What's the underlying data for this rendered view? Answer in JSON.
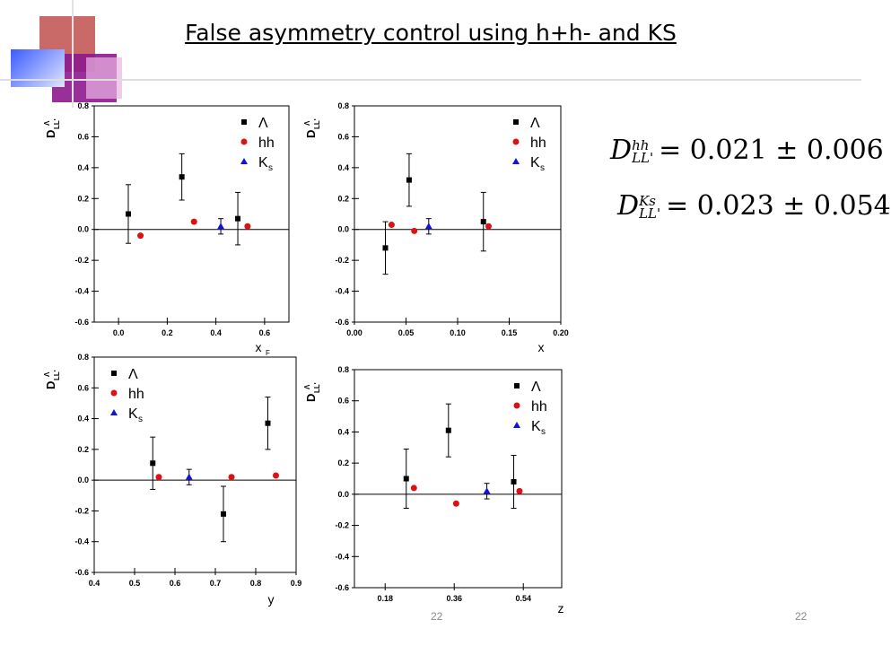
{
  "title": "False asymmetry control  using  h+h- and KS",
  "page_numbers": [
    "22",
    "22"
  ],
  "equations": [
    {
      "symbol": "D",
      "superscript": "hh",
      "subscript": "LL'",
      "text": "= 0.021 ± 0.006"
    },
    {
      "symbol": "D",
      "superscript": "Ks",
      "subscript": "LL'",
      "text": "= 0.023 ± 0.054"
    }
  ],
  "colors": {
    "lambda": "#000000",
    "hh": "#dd1111",
    "ks": "#1111dd",
    "deco_red": "#c0504d",
    "deco_purple": "#8e1a8e",
    "deco_blue": "#4f6dff"
  },
  "chart_data": [
    {
      "type": "scatter",
      "ylabel": "D",
      "ylabel_sup": "Λ",
      "ylabel_sub": "LL'",
      "xlabel": "x",
      "xlabel_sub": "F",
      "xlim": [
        -0.1,
        0.7
      ],
      "ylim": [
        -0.6,
        0.8
      ],
      "xticks": [
        "0.0",
        "0.2",
        "0.4",
        "0.6"
      ],
      "xtick_values": [
        0.0,
        0.2,
        0.4,
        0.6
      ],
      "yticks": [
        "-0.6",
        "-0.4",
        "-0.2",
        "0.0",
        "0.2",
        "0.4",
        "0.6",
        "0.8"
      ],
      "ytick_values": [
        -0.6,
        -0.4,
        -0.2,
        0.0,
        0.2,
        0.4,
        0.6,
        0.8
      ],
      "legend": [
        "Λ",
        "hh",
        "K",
        "s"
      ],
      "legend_position": "top-right",
      "series": [
        {
          "name": "Λ",
          "marker": "square",
          "x": [
            0.04,
            0.26,
            0.49
          ],
          "y": [
            0.1,
            0.34,
            0.07
          ],
          "err": [
            0.19,
            0.15,
            0.17
          ]
        },
        {
          "name": "hh",
          "marker": "circle",
          "x": [
            0.09,
            0.31,
            0.53
          ],
          "y": [
            -0.04,
            0.05,
            0.02
          ],
          "err": [
            0,
            0,
            0
          ]
        },
        {
          "name": "Ks",
          "marker": "triangle",
          "x": [
            0.42
          ],
          "y": [
            0.02
          ],
          "err": [
            0.05
          ]
        }
      ]
    },
    {
      "type": "scatter",
      "ylabel": "D",
      "ylabel_sup": "Λ",
      "ylabel_sub": "LL'",
      "xlabel": "x",
      "xlabel_sub": "",
      "xlim": [
        0.0,
        0.2
      ],
      "ylim": [
        -0.6,
        0.8
      ],
      "xticks": [
        "0.00",
        "0.05",
        "0.10",
        "0.15",
        "0.20"
      ],
      "xtick_values": [
        0.0,
        0.05,
        0.1,
        0.15,
        0.2
      ],
      "yticks": [
        "-0.6",
        "-0.4",
        "-0.2",
        "0.0",
        "0.2",
        "0.4",
        "0.6",
        "0.8"
      ],
      "ytick_values": [
        -0.6,
        -0.4,
        -0.2,
        0.0,
        0.2,
        0.4,
        0.6,
        0.8
      ],
      "legend": [
        "Λ",
        "hh",
        "K",
        "s"
      ],
      "legend_position": "top-right",
      "series": [
        {
          "name": "Λ",
          "marker": "square",
          "x": [
            0.03,
            0.053,
            0.125
          ],
          "y": [
            -0.12,
            0.32,
            0.05
          ],
          "err": [
            0.17,
            0.17,
            0.19
          ]
        },
        {
          "name": "hh",
          "marker": "circle",
          "x": [
            0.036,
            0.058,
            0.13
          ],
          "y": [
            0.03,
            -0.01,
            0.02
          ],
          "err": [
            0,
            0,
            0
          ]
        },
        {
          "name": "Ks",
          "marker": "triangle",
          "x": [
            0.072
          ],
          "y": [
            0.02
          ],
          "err": [
            0.05
          ]
        }
      ]
    },
    {
      "type": "scatter",
      "ylabel": "D",
      "ylabel_sup": "Λ",
      "ylabel_sub": "LL'",
      "xlabel": "y",
      "xlabel_sub": "",
      "xlim": [
        0.4,
        0.9
      ],
      "ylim": [
        -0.6,
        0.8
      ],
      "xticks": [
        "0.4",
        "0.5",
        "0.6",
        "0.7",
        "0.8",
        "0.9"
      ],
      "xtick_values": [
        0.4,
        0.5,
        0.6,
        0.7,
        0.8,
        0.9
      ],
      "yticks": [
        "-0.6",
        "-0.4",
        "-0.2",
        "0.0",
        "0.2",
        "0.4",
        "0.6",
        "0.8"
      ],
      "ytick_values": [
        -0.6,
        -0.4,
        -0.2,
        0.0,
        0.2,
        0.4,
        0.6,
        0.8
      ],
      "legend": [
        "Λ",
        "hh",
        "K",
        "s"
      ],
      "legend_position": "top-left",
      "series": [
        {
          "name": "Λ",
          "marker": "square",
          "x": [
            0.545,
            0.72,
            0.83
          ],
          "y": [
            0.11,
            -0.22,
            0.37
          ],
          "err": [
            0.17,
            0.18,
            0.17
          ]
        },
        {
          "name": "hh",
          "marker": "circle",
          "x": [
            0.56,
            0.74,
            0.85
          ],
          "y": [
            0.02,
            0.02,
            0.03
          ],
          "err": [
            0,
            0,
            0
          ]
        },
        {
          "name": "Ks",
          "marker": "triangle",
          "x": [
            0.635
          ],
          "y": [
            0.02
          ],
          "err": [
            0.05
          ]
        }
      ]
    },
    {
      "type": "scatter",
      "ylabel": "D",
      "ylabel_sup": "Λ",
      "ylabel_sub": "LL'",
      "xlabel": "z",
      "xlabel_sub": "",
      "xlim": [
        0.1,
        0.64
      ],
      "ylim": [
        -0.6,
        0.8
      ],
      "xticks": [
        "0.18",
        "0.36",
        "0.54"
      ],
      "xtick_values": [
        0.18,
        0.36,
        0.54
      ],
      "yticks": [
        "-0.6",
        "-0.4",
        "-0.2",
        "0.0",
        "0.2",
        "0.4",
        "0.6",
        "0.8"
      ],
      "ytick_values": [
        -0.6,
        -0.4,
        -0.2,
        0.0,
        0.2,
        0.4,
        0.6,
        0.8
      ],
      "legend": [
        "Λ",
        "hh",
        "K",
        "s"
      ],
      "legend_position": "top-right",
      "series": [
        {
          "name": "Λ",
          "marker": "square",
          "x": [
            0.235,
            0.345,
            0.515
          ],
          "y": [
            0.1,
            0.41,
            0.08
          ],
          "err": [
            0.19,
            0.17,
            0.17
          ]
        },
        {
          "name": "hh",
          "marker": "circle",
          "x": [
            0.255,
            0.365,
            0.53
          ],
          "y": [
            0.04,
            -0.06,
            0.02
          ],
          "err": [
            0,
            0,
            0
          ]
        },
        {
          "name": "Ks",
          "marker": "triangle",
          "x": [
            0.445
          ],
          "y": [
            0.02
          ],
          "err": [
            0.05
          ]
        }
      ]
    }
  ]
}
